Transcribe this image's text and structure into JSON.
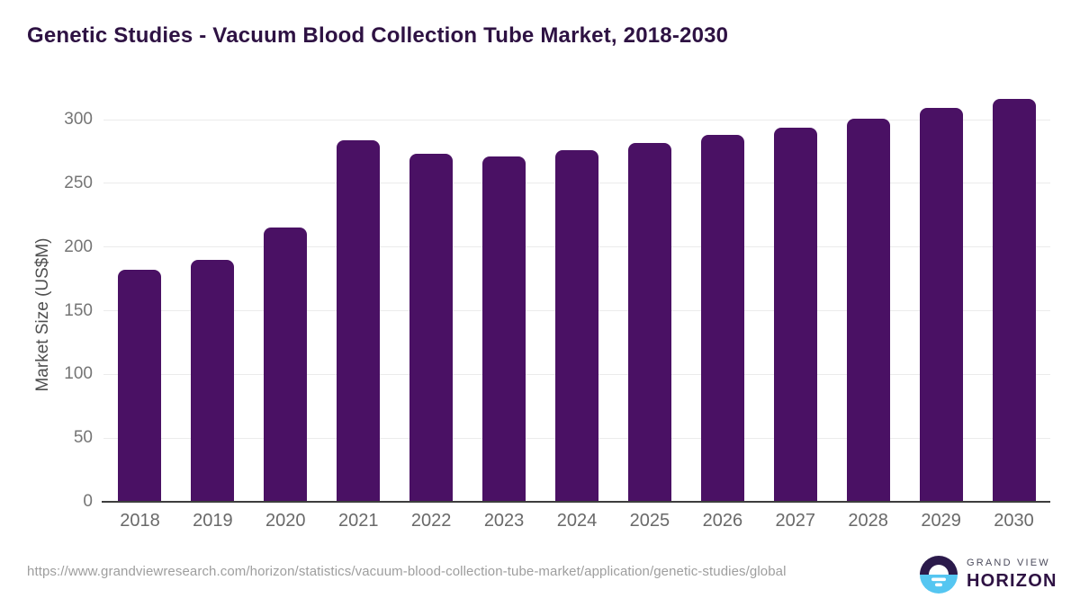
{
  "page": {
    "title": "Genetic Studies - Vacuum Blood Collection Tube Market, 2018-2030"
  },
  "footer": {
    "source_url": "https://www.grandviewresearch.com/horizon/statistics/vacuum-blood-collection-tube-market/application/genetic-studies/global",
    "logo": {
      "line1": "GRAND VIEW",
      "line2": "HORIZON"
    }
  },
  "colors": {
    "bar": "#4a1164",
    "title": "#2e1243",
    "gridline": "#ebebeb",
    "axis_line": "#3d3d3d",
    "tick_label": "#757575",
    "url_text": "#9e9e9e",
    "logo_navy": "#2b1a4b",
    "logo_blue": "#55c6f1"
  },
  "chart_data": {
    "type": "bar",
    "title": "Genetic Studies - Vacuum Blood Collection Tube Market, 2018-2030",
    "categories": [
      "2018",
      "2019",
      "2020",
      "2021",
      "2022",
      "2023",
      "2024",
      "2025",
      "2026",
      "2027",
      "2028",
      "2029",
      "2030"
    ],
    "values": [
      182,
      190,
      215,
      284,
      273,
      271,
      276,
      282,
      288,
      294,
      301,
      309,
      316
    ],
    "xlabel": "",
    "ylabel": "Market Size (US$M)",
    "ylim": [
      0,
      320
    ],
    "yticks": [
      0,
      50,
      100,
      150,
      200,
      250,
      300
    ],
    "grid": true,
    "legend": false,
    "bar_color": "#4a1164"
  }
}
